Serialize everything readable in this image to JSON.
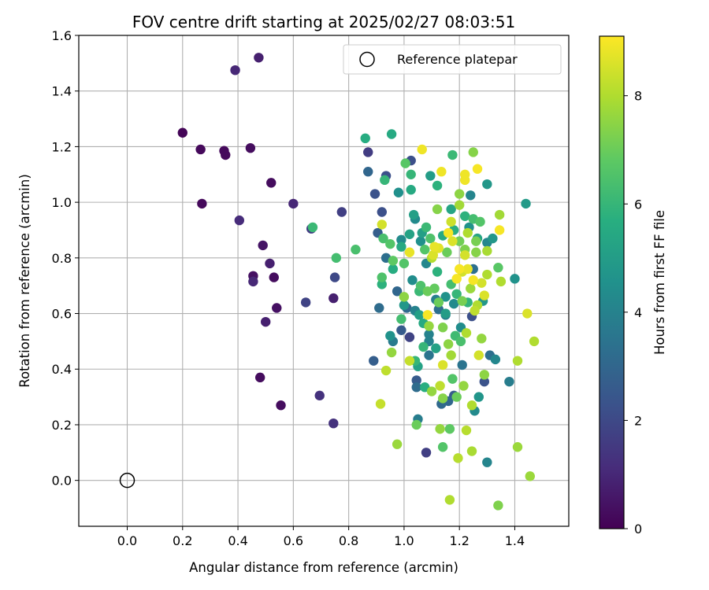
{
  "chart_data": {
    "type": "scatter",
    "title": "FOV centre drift starting at 2025/02/27 08:03:51",
    "xlabel": "Angular distance from reference (arcmin)",
    "ylabel": "Rotation from reference (arcmin)",
    "xlim": [
      -0.175,
      1.595
    ],
    "ylim": [
      -0.165,
      1.6
    ],
    "xticks": [
      "0.0",
      "0.2",
      "0.4",
      "0.6",
      "0.8",
      "1.0",
      "1.2",
      "1.4"
    ],
    "yticks": [
      "0.0",
      "0.2",
      "0.4",
      "0.6",
      "0.8",
      "1.0",
      "1.2",
      "1.4",
      "1.6"
    ],
    "grid": true,
    "legend": {
      "position": "top-right",
      "entries": [
        "Reference platepar"
      ]
    },
    "reference_point": {
      "x": 0.0,
      "y": 0.0,
      "label": "Reference platepar"
    },
    "colorbar": {
      "label": "Hours from first FF file",
      "range": [
        0,
        9.1
      ],
      "ticks": [
        "0",
        "2",
        "4",
        "6",
        "8"
      ],
      "colormap": "viridis"
    },
    "series": [
      {
        "points": [
          [
            0.2,
            1.25,
            0.1
          ],
          [
            0.265,
            1.19,
            0.2
          ],
          [
            0.35,
            1.185,
            0.2
          ],
          [
            0.355,
            1.17,
            0.2
          ],
          [
            0.445,
            1.195,
            0.3
          ],
          [
            0.27,
            0.995,
            0.2
          ],
          [
            0.52,
            1.07,
            0.3
          ],
          [
            0.39,
            1.475,
            1.0
          ],
          [
            0.475,
            1.52,
            0.8
          ],
          [
            0.405,
            0.935,
            1.1
          ],
          [
            0.6,
            0.995,
            1.0
          ],
          [
            0.49,
            0.845,
            0.5
          ],
          [
            0.515,
            0.78,
            0.8
          ],
          [
            0.455,
            0.735,
            0.4
          ],
          [
            0.455,
            0.715,
            1.0
          ],
          [
            0.53,
            0.73,
            0.3
          ],
          [
            0.54,
            0.62,
            0.4
          ],
          [
            0.5,
            0.57,
            0.8
          ],
          [
            0.48,
            0.37,
            0.3
          ],
          [
            0.555,
            0.27,
            0.3
          ],
          [
            0.645,
            0.64,
            1.8
          ],
          [
            0.665,
            0.905,
            1.6
          ],
          [
            0.695,
            0.305,
            1.3
          ],
          [
            0.745,
            0.205,
            1.3
          ],
          [
            0.745,
            0.655,
            0.8
          ],
          [
            0.75,
            0.73,
            2.0
          ],
          [
            0.775,
            0.965,
            1.7
          ],
          [
            0.67,
            0.91,
            6.1
          ],
          [
            0.755,
            0.8,
            6.3
          ],
          [
            0.825,
            0.83,
            6.4
          ],
          [
            0.86,
            1.23,
            5.6
          ],
          [
            0.87,
            1.18,
            1.6
          ],
          [
            0.87,
            1.11,
            3.0
          ],
          [
            0.895,
            1.03,
            2.3
          ],
          [
            0.905,
            0.89,
            2.7
          ],
          [
            0.92,
            0.965,
            2.2
          ],
          [
            0.935,
            1.095,
            2.2
          ],
          [
            0.955,
            1.245,
            5.5
          ],
          [
            0.93,
            1.08,
            6.0
          ],
          [
            0.92,
            0.92,
            8.5
          ],
          [
            0.925,
            0.87,
            6.4
          ],
          [
            0.95,
            0.85,
            6.6
          ],
          [
            0.96,
            0.79,
            6.8
          ],
          [
            0.935,
            0.8,
            3.3
          ],
          [
            0.92,
            0.73,
            6.5
          ],
          [
            0.92,
            0.705,
            5.8
          ],
          [
            0.96,
            0.5,
            3.7
          ],
          [
            0.91,
            0.62,
            3.2
          ],
          [
            0.89,
            0.43,
            2.7
          ],
          [
            0.915,
            0.275,
            8.3
          ],
          [
            0.935,
            0.395,
            8.2
          ],
          [
            0.955,
            0.46,
            7.6
          ],
          [
            0.975,
            0.13,
            7.7
          ],
          [
            0.95,
            0.52,
            4.6
          ],
          [
            0.975,
            0.68,
            3.0
          ],
          [
            0.98,
            1.035,
            4.5
          ],
          [
            0.99,
            0.84,
            5.5
          ],
          [
            0.99,
            0.865,
            4.3
          ],
          [
            0.99,
            0.54,
            2.6
          ],
          [
            0.99,
            0.58,
            6.3
          ],
          [
            1.0,
            0.66,
            7.5
          ],
          [
            1.0,
            0.78,
            6.6
          ],
          [
            1.005,
            1.14,
            6.7
          ],
          [
            1.01,
            0.62,
            3.1
          ],
          [
            1.02,
            0.885,
            5.2
          ],
          [
            1.02,
            0.82,
            8.8
          ],
          [
            1.025,
            1.15,
            2.2
          ],
          [
            1.025,
            1.1,
            6.0
          ],
          [
            1.025,
            1.045,
            5.5
          ],
          [
            1.02,
            0.515,
            1.8
          ],
          [
            1.02,
            0.43,
            8.3
          ],
          [
            1.03,
            0.72,
            4.4
          ],
          [
            1.035,
            0.955,
            5.1
          ],
          [
            1.04,
            0.61,
            4.0
          ],
          [
            1.04,
            0.94,
            4.3
          ],
          [
            1.04,
            0.43,
            6.0
          ],
          [
            1.045,
            0.36,
            2.6
          ],
          [
            1.045,
            0.335,
            3.2
          ],
          [
            1.045,
            0.2,
            7.0
          ],
          [
            1.05,
            0.22,
            3.8
          ],
          [
            1.055,
            0.595,
            5.1
          ],
          [
            1.055,
            0.68,
            6.1
          ],
          [
            1.06,
            0.86,
            4.5
          ],
          [
            1.065,
            1.19,
            8.9
          ],
          [
            1.065,
            0.89,
            5.1
          ],
          [
            1.07,
            0.48,
            6.0
          ],
          [
            1.07,
            0.565,
            5.5
          ],
          [
            1.075,
            0.83,
            6.6
          ],
          [
            1.075,
            0.335,
            5.7
          ],
          [
            1.08,
            0.1,
            1.7
          ],
          [
            1.08,
            0.91,
            6.1
          ],
          [
            1.085,
            0.595,
            9.0
          ],
          [
            1.085,
            0.68,
            7.0
          ],
          [
            1.09,
            0.555,
            7.6
          ],
          [
            1.09,
            0.525,
            4.0
          ],
          [
            1.09,
            0.5,
            4.0
          ],
          [
            1.09,
            0.45,
            3.5
          ],
          [
            1.095,
            1.095,
            5.0
          ],
          [
            1.095,
            0.87,
            6.5
          ],
          [
            1.1,
            0.8,
            8.0
          ],
          [
            1.1,
            0.32,
            7.6
          ],
          [
            1.105,
            0.81,
            8.6
          ],
          [
            1.11,
            0.84,
            8.8
          ],
          [
            1.115,
            0.475,
            5.2
          ],
          [
            1.115,
            0.65,
            3.9
          ],
          [
            1.12,
            1.06,
            5.8
          ],
          [
            1.12,
            0.975,
            7.4
          ],
          [
            1.125,
            0.835,
            8.7
          ],
          [
            1.125,
            0.615,
            3.3
          ],
          [
            1.125,
            0.64,
            7.0
          ],
          [
            1.13,
            0.185,
            7.6
          ],
          [
            1.13,
            0.34,
            8.2
          ],
          [
            1.135,
            1.11,
            8.9
          ],
          [
            1.135,
            0.275,
            3.1
          ],
          [
            1.14,
            0.415,
            8.6
          ],
          [
            1.14,
            0.295,
            7.4
          ],
          [
            1.14,
            0.12,
            6.6
          ],
          [
            1.14,
            0.55,
            7.3
          ],
          [
            1.15,
            0.595,
            3.8
          ],
          [
            1.15,
            0.66,
            4.6
          ],
          [
            1.155,
            0.82,
            7.0
          ],
          [
            1.16,
            0.89,
            9.0
          ],
          [
            1.16,
            0.49,
            7.5
          ],
          [
            1.16,
            0.285,
            3.0
          ],
          [
            1.165,
            0.185,
            6.8
          ],
          [
            1.165,
            -0.07,
            8.0
          ],
          [
            1.17,
            0.975,
            5.3
          ],
          [
            1.17,
            0.93,
            8.4
          ],
          [
            1.17,
            0.705,
            6.3
          ],
          [
            1.175,
            1.17,
            6.1
          ],
          [
            1.175,
            0.86,
            8.6
          ],
          [
            1.175,
            0.365,
            6.6
          ],
          [
            1.18,
            0.9,
            5.7
          ],
          [
            1.18,
            0.635,
            4.3
          ],
          [
            1.18,
            0.305,
            2.6
          ],
          [
            1.185,
            0.52,
            6.2
          ],
          [
            1.19,
            0.67,
            6.0
          ],
          [
            1.19,
            0.725,
            9.0
          ],
          [
            1.19,
            0.3,
            7.0
          ],
          [
            1.195,
            0.08,
            8.1
          ],
          [
            1.2,
            0.99,
            7.8
          ],
          [
            1.2,
            1.03,
            7.5
          ],
          [
            1.2,
            0.76,
            9.0
          ],
          [
            1.205,
            0.55,
            4.4
          ],
          [
            1.205,
            0.5,
            6.4
          ],
          [
            1.21,
            0.75,
            8.5
          ],
          [
            1.21,
            0.645,
            7.2
          ],
          [
            1.21,
            0.415,
            3.5
          ],
          [
            1.215,
            0.34,
            7.6
          ],
          [
            1.22,
            1.1,
            8.9
          ],
          [
            1.22,
            1.08,
            8.9
          ],
          [
            1.22,
            0.95,
            5.8
          ],
          [
            1.22,
            0.83,
            7.3
          ],
          [
            1.22,
            0.81,
            8.5
          ],
          [
            1.225,
            0.53,
            8.0
          ],
          [
            1.225,
            0.18,
            8.1
          ],
          [
            1.23,
            0.89,
            8.0
          ],
          [
            1.23,
            0.76,
            8.8
          ],
          [
            1.235,
            0.91,
            4.6
          ],
          [
            1.24,
            0.69,
            7.7
          ],
          [
            1.24,
            1.025,
            4.1
          ],
          [
            1.245,
            0.59,
            2.2
          ],
          [
            1.245,
            0.27,
            8.0
          ],
          [
            1.245,
            0.105,
            7.9
          ],
          [
            1.25,
            1.18,
            7.4
          ],
          [
            1.25,
            0.76,
            3.3
          ],
          [
            1.25,
            0.94,
            6.3
          ],
          [
            1.25,
            0.72,
            9.0
          ],
          [
            1.255,
            0.61,
            8.2
          ],
          [
            1.255,
            0.25,
            4.3
          ],
          [
            1.26,
            0.86,
            7.2
          ],
          [
            1.265,
            1.12,
            9.0
          ],
          [
            1.265,
            0.87,
            5.3
          ],
          [
            1.265,
            0.63,
            8.0
          ],
          [
            1.27,
            0.3,
            4.7
          ],
          [
            1.275,
            0.93,
            6.6
          ],
          [
            1.28,
            0.71,
            8.5
          ],
          [
            1.28,
            0.51,
            7.6
          ],
          [
            1.285,
            0.645,
            4.8
          ],
          [
            1.29,
            0.38,
            7.5
          ],
          [
            1.29,
            0.355,
            2.3
          ],
          [
            1.29,
            0.665,
            8.6
          ],
          [
            1.3,
            0.825,
            7.9
          ],
          [
            1.3,
            0.855,
            4.2
          ],
          [
            1.3,
            1.065,
            4.8
          ],
          [
            1.3,
            0.065,
            4.1
          ],
          [
            1.3,
            0.74,
            8.0
          ],
          [
            1.31,
            0.45,
            3.3
          ],
          [
            1.32,
            0.87,
            4.8
          ],
          [
            1.33,
            0.435,
            4.2
          ],
          [
            1.34,
            0.765,
            6.7
          ],
          [
            1.34,
            -0.09,
            7.3
          ],
          [
            1.345,
            0.955,
            7.8
          ],
          [
            1.345,
            0.9,
            9.0
          ],
          [
            1.35,
            0.715,
            8.0
          ],
          [
            1.38,
            0.355,
            3.8
          ],
          [
            1.4,
            0.725,
            4.6
          ],
          [
            1.41,
            0.43,
            8.0
          ],
          [
            1.41,
            0.12,
            7.7
          ],
          [
            1.44,
            0.995,
            4.9
          ],
          [
            1.445,
            0.6,
            8.6
          ],
          [
            1.455,
            0.015,
            7.7
          ],
          [
            1.47,
            0.5,
            8.0
          ],
          [
            1.15,
            0.6,
            5.0
          ],
          [
            1.12,
            0.75,
            5.8
          ],
          [
            1.06,
            0.7,
            6.5
          ],
          [
            1.0,
            0.63,
            4.8
          ],
          [
            1.08,
            0.78,
            4.2
          ],
          [
            1.2,
            0.86,
            7.1
          ],
          [
            1.14,
            0.88,
            5.5
          ],
          [
            1.23,
            0.64,
            5.9
          ],
          [
            1.17,
            0.45,
            7.8
          ],
          [
            1.27,
            0.45,
            8.5
          ],
          [
            1.05,
            0.41,
            5.2
          ],
          [
            0.96,
            0.76,
            5.6
          ],
          [
            1.11,
            0.69,
            6.9
          ],
          [
            1.26,
            0.82,
            7.4
          ]
        ]
      }
    ]
  }
}
